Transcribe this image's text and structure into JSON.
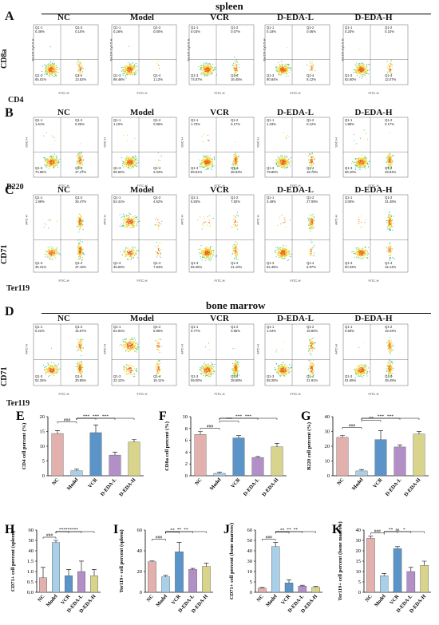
{
  "sections": {
    "spleen": "spleen",
    "bone_marrow": "bone marrow"
  },
  "groups": [
    "NC",
    "Model",
    "VCR",
    "D-EDA-L",
    "D-EDA-H"
  ],
  "panel_letters": [
    "A",
    "B",
    "C",
    "D",
    "E",
    "F",
    "G",
    "H",
    "I",
    "J",
    "K"
  ],
  "axis_labels": {
    "A_y": "CD8a",
    "A_x": "CD4",
    "B_x": "B220",
    "C_y": "CD71",
    "C_x": "Ter119",
    "D_y": "CD71",
    "D_x": "Ter119"
  },
  "facs_axis": {
    "A_x": "FITC-H",
    "A_y": "PerCP-Cy5-5-H",
    "B_x": "FITC-H",
    "B_y": "SSC-H",
    "C_x": "FITC-H",
    "C_y": "APC-H",
    "D_x": "FITC-H",
    "D_y": "APC-H"
  },
  "facs_quadrants": {
    "A": [
      {
        "q1": "Q1-1\n0.36%",
        "q2": "Q1-2\n0.10%",
        "q3": "Q1-3\n65.01%",
        "q4": "Q1-4\n13.52%"
      },
      {
        "q1": "Q1-1\n0.26%",
        "q2": "Q1-2\n0.00%",
        "q3": "Q1-3\n98.48%",
        "q4": "Q1-4\n1.13%"
      },
      {
        "q1": "Q1-1\n0.03%",
        "q2": "Q1-2\n0.07%",
        "q3": "Q1-3\n74.87%",
        "q4": "Q1-4\n16.45%"
      },
      {
        "q1": "Q1-1\n0.18%",
        "q2": "Q1-2\n0.06%",
        "q3": "Q1-3\n90.84%",
        "q4": "Q1-4\n8.12%"
      },
      {
        "q1": "Q1-1\n0.20%",
        "q2": "Q1-2\n0.10%",
        "q3": "Q1-3\n82.60%",
        "q4": "Q1-4\n12.07%"
      }
    ],
    "B": [
      {
        "q1": "Q1-1\n1.61%",
        "q2": "Q1-2\n0.26%",
        "q3": "Q1-3\n70.66%",
        "q4": "Q1-4\n27.47%"
      },
      {
        "q1": "Q1-1\n1.10%",
        "q2": "Q1-2\n0.06%",
        "q3": "Q1-3\n96.52%",
        "q4": "Q1-4\n2.03%"
      },
      {
        "q1": "Q1-1\n1.70%",
        "q2": "Q1-2\n0.17%",
        "q3": "Q1-3\n69.61%",
        "q4": "Q1-4\n28.53%"
      },
      {
        "q1": "Q1-1\n1.33%",
        "q2": "Q1-2\n0.12%",
        "q3": "Q1-3\n79.80%",
        "q4": "Q1-4\n18.76%"
      },
      {
        "q1": "Q1-1\n1.88%",
        "q2": "Q1-2\n0.17%",
        "q3": "Q1-3\n68.10%",
        "q4": "Q1-4\n29.84%"
      }
    ],
    "C": [
      {
        "q1": "Q1-1\n1.99%",
        "q2": "Q1-2\n25.47%",
        "q3": "Q1-3\n35.31%",
        "q4": "Q1-4\n37.16%"
      },
      {
        "q1": "Q1-1\n52.41%",
        "q2": "Q1-2\n4.52%",
        "q3": "Q1-3\n35.63%",
        "q4": "Q1-4\n7.84%"
      },
      {
        "q1": "Q1-1\n5.83%",
        "q2": "Q1-2\n7.82%",
        "q3": "Q1-3\n65.25%",
        "q4": "Q1-4\n21.10%"
      },
      {
        "q1": "Q1-1\n3.48%",
        "q2": "Q1-2\n27.06%",
        "q3": "Q1-3\n62.46%",
        "q4": "Q1-4\n6.97%"
      },
      {
        "q1": "Q1-1\n3.05%",
        "q2": "Q1-2\n31.48%",
        "q3": "Q1-3\n50.33%",
        "q4": "Q1-4\n15.14%"
      }
    ],
    "D": [
      {
        "q1": "Q1-1\n0.22%",
        "q2": "Q1-2\n16.67%",
        "q3": "Q1-3\n52.25%",
        "q4": "Q1-4\n30.85%"
      },
      {
        "q1": "Q1-1\n52.91%",
        "q2": "Q1-2\n8.86%",
        "q3": "Q1-3\n22.12%",
        "q4": "Q1-4\n16.11%"
      },
      {
        "q1": "Q1-1\n0.77%",
        "q2": "Q1-2\n0.55%",
        "q3": "Q1-3\n59.00%",
        "q4": "Q1-4\n39.68%"
      },
      {
        "q1": "Q1-1\n1.04%",
        "q2": "Q1-2\n18.80%",
        "q3": "Q1-3\n58.25%",
        "q4": "Q1-4\n21.91%"
      },
      {
        "q1": "Q1-1\n0.58%",
        "q2": "Q1-2\n19.42%",
        "q3": "Q1-3\n51.55%",
        "q4": "Q1-4\n28.45%"
      }
    ]
  },
  "bar_colors": [
    "#e2b1ae",
    "#a9cfe9",
    "#5b94c9",
    "#b38fc7",
    "#d9d48c"
  ],
  "chart_data": [
    {
      "panel": "E",
      "type": "bar",
      "categories": [
        "NC",
        "Model",
        "VCR",
        "D-EDA-L",
        "D-EDA-H"
      ],
      "values": [
        14.3,
        1.7,
        14.6,
        7.0,
        11.4
      ],
      "errors": [
        1.0,
        0.5,
        2.6,
        1.0,
        0.9
      ],
      "ylabel": "CD4 cell percent (%)",
      "ylim": [
        0,
        20
      ],
      "yticks": [
        "0",
        "5",
        "10",
        "15",
        "20"
      ],
      "sig": [
        "###",
        "***",
        "***",
        "***"
      ]
    },
    {
      "panel": "F",
      "type": "bar",
      "categories": [
        "NC",
        "Model",
        "VCR",
        "D-EDA-L",
        "D-EDA-H"
      ],
      "values": [
        7.0,
        0.4,
        6.4,
        3.1,
        4.9
      ],
      "errors": [
        0.5,
        0.2,
        0.4,
        0.15,
        0.6
      ],
      "ylabel": "CD8a cell percent (%)",
      "ylim": [
        0,
        10
      ],
      "yticks": [
        "0",
        "2",
        "4",
        "6",
        "8",
        "10"
      ],
      "sig": [
        "###",
        "***",
        "***",
        "***"
      ]
    },
    {
      "panel": "G",
      "type": "bar",
      "categories": [
        "NC",
        "Model",
        "VCR",
        "D-EDA-L",
        "D-EDA-H"
      ],
      "values": [
        26.0,
        3.3,
        24.5,
        19.5,
        28.2
      ],
      "errors": [
        1.3,
        0.9,
        6.0,
        1.4,
        1.7
      ],
      "ylabel": "B220 cell percent (%)",
      "ylim": [
        0,
        40
      ],
      "yticks": [
        "0",
        "10",
        "20",
        "30",
        "40"
      ],
      "sig": [
        "###",
        "**",
        "***",
        "***"
      ]
    },
    {
      "panel": "H",
      "type": "bar",
      "categories": [
        "NC",
        "Model",
        "VCR",
        "D-EDA-L",
        "D-EDA-H"
      ],
      "values": [
        0.7,
        48.0,
        0.8,
        1.0,
        0.8
      ],
      "errors": [
        0.5,
        2.0,
        0.3,
        0.6,
        0.3
      ],
      "ylabel": "CD71+ cell percent (spleen)",
      "yticks": [
        "0.0",
        "0.5",
        "1.0",
        "1.5",
        "40",
        "50",
        "60"
      ],
      "sig": [
        "###",
        "***",
        "***",
        "***"
      ]
    },
    {
      "panel": "I",
      "type": "bar",
      "categories": [
        "NC",
        "Model",
        "VCR",
        "D-EDA-L",
        "D-EDA-H"
      ],
      "values": [
        29.5,
        15.0,
        39.0,
        22.0,
        25.0
      ],
      "errors": [
        0.7,
        1.3,
        9.0,
        1.0,
        3.0
      ],
      "ylabel": "Ter119+ cell percent (spleen)",
      "ylim": [
        0,
        60
      ],
      "yticks": [
        "0",
        "20",
        "40",
        "60"
      ],
      "sig": [
        "###",
        "**",
        "**",
        "**"
      ]
    },
    {
      "panel": "J",
      "type": "bar",
      "categories": [
        "NC",
        "Model",
        "VCR",
        "D-EDA-L",
        "D-EDA-H"
      ],
      "values": [
        2.0,
        44.0,
        4.5,
        3.0,
        2.4
      ],
      "errors": [
        0.3,
        4.0,
        1.5,
        0.4,
        0.4
      ],
      "ylabel": "CD71+ cell percent (bone marrow)",
      "yticks": [
        "0",
        "5",
        "10",
        "30",
        "40",
        "50",
        "60"
      ],
      "sig": [
        "###",
        "**",
        "**",
        "**"
      ]
    },
    {
      "panel": "K",
      "type": "bar",
      "categories": [
        "NC",
        "Model",
        "VCR",
        "D-EDA-L",
        "D-EDA-H"
      ],
      "values": [
        32.0,
        8.0,
        22.0,
        10.0,
        13.0
      ],
      "errors": [
        2.0,
        1.0,
        2.0,
        2.0,
        2.0
      ],
      "ylabel": "Ter119+ cell percent (bone marrow)",
      "yticks": [
        "0",
        "5",
        "10",
        "15",
        "20",
        "30",
        "40"
      ],
      "sig": [
        "###",
        "**",
        "ns",
        "*"
      ]
    }
  ]
}
